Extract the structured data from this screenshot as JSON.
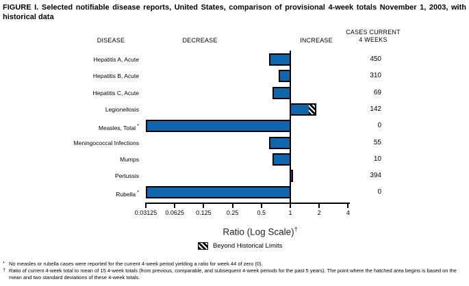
{
  "title": "FIGURE I. Selected notifiable disease reports, United States, comparison of provisional 4-week totals November 1, 2003, with historical data",
  "columns": {
    "disease": "DISEASE",
    "decrease": "DECREASE",
    "increase": "INCREASE",
    "cases_line1": "CASES CURRENT",
    "cases_line2": "4 WEEKS"
  },
  "chart_data": {
    "type": "bar",
    "orientation": "horizontal",
    "scale": "log2",
    "baseline_ratio": 1,
    "axis_range": [
      0.03125,
      4
    ],
    "axis_ticks": [
      "0.03125",
      "0.0625",
      "0.125",
      "0.25",
      "0.5",
      "1",
      "2",
      "4"
    ],
    "xlabel": "Ratio (Log Scale)",
    "xlabel_marker": "†",
    "bar_color": "#1065AC",
    "legend_label": "Beyond Historical Limits",
    "rows": [
      {
        "disease": "Hepatitis A, Acute",
        "marker": "",
        "ratio": 0.6,
        "beyond_from": null,
        "cases": "450"
      },
      {
        "disease": "Hepatitis B, Acute",
        "marker": "",
        "ratio": 0.76,
        "beyond_from": null,
        "cases": "310"
      },
      {
        "disease": "Hepatitis C, Acute",
        "marker": "",
        "ratio": 0.65,
        "beyond_from": null,
        "cases": "69"
      },
      {
        "disease": "Legionellosis",
        "marker": "",
        "ratio": 1.86,
        "beyond_from": 1.62,
        "cases": "142"
      },
      {
        "disease": "Measles, Total",
        "marker": "*",
        "ratio": 0,
        "beyond_from": null,
        "cases": "0"
      },
      {
        "disease": "Meningococcal Infections",
        "marker": "",
        "ratio": 0.6,
        "beyond_from": null,
        "cases": "55"
      },
      {
        "disease": "Mumps",
        "marker": "",
        "ratio": 0.65,
        "beyond_from": null,
        "cases": "10"
      },
      {
        "disease": "Pertussis",
        "marker": "",
        "ratio": 1.06,
        "beyond_from": null,
        "cases": "394"
      },
      {
        "disease": "Rubella",
        "marker": "*",
        "ratio": 0,
        "beyond_from": null,
        "cases": "0"
      }
    ]
  },
  "footnotes": [
    {
      "marker": "*",
      "text": "No measles or rubella cases were reported for the current 4-week period yielding a ratio for week 44 of zero (0)."
    },
    {
      "marker": "†",
      "text": "Ratio of current 4-week total to mean of 15 4-week totals (from previous, comparable, and subsequent 4-week periods for the past 5 years). The point where the hatched area begins is based on the mean and two standard deviations of these 4-week totals."
    }
  ]
}
